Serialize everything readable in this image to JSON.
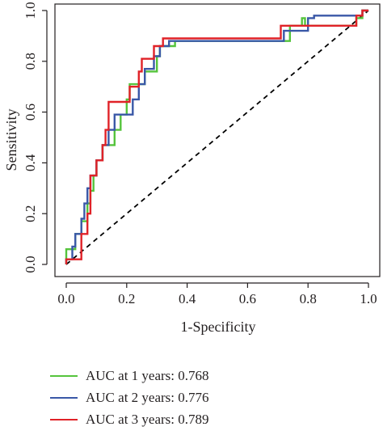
{
  "chart_data": {
    "type": "line",
    "title": "",
    "xlabel": "1-Specificity",
    "ylabel": "Sensitivity",
    "xlim": [
      0,
      1
    ],
    "ylim": [
      0,
      1
    ],
    "x_ticks": [
      "0.0",
      "0.2",
      "0.4",
      "0.6",
      "0.8",
      "1.0"
    ],
    "y_ticks": [
      "0.0",
      "0.2",
      "0.4",
      "0.6",
      "0.8",
      "1.0"
    ],
    "grid": false,
    "legend_position": "bottom",
    "reference_line": {
      "style": "dashed",
      "color": "#000000",
      "from": [
        0,
        0
      ],
      "to": [
        1,
        1
      ]
    },
    "series": [
      {
        "name": "AUC at 1 years: 0.768",
        "color": "#55c43c",
        "points": [
          [
            0,
            0
          ],
          [
            0,
            0.06
          ],
          [
            0.03,
            0.06
          ],
          [
            0.03,
            0.12
          ],
          [
            0.05,
            0.12
          ],
          [
            0.05,
            0.17
          ],
          [
            0.07,
            0.17
          ],
          [
            0.07,
            0.24
          ],
          [
            0.08,
            0.24
          ],
          [
            0.08,
            0.29
          ],
          [
            0.09,
            0.29
          ],
          [
            0.09,
            0.35
          ],
          [
            0.1,
            0.35
          ],
          [
            0.1,
            0.41
          ],
          [
            0.12,
            0.41
          ],
          [
            0.12,
            0.47
          ],
          [
            0.16,
            0.47
          ],
          [
            0.16,
            0.53
          ],
          [
            0.18,
            0.53
          ],
          [
            0.18,
            0.59
          ],
          [
            0.2,
            0.59
          ],
          [
            0.2,
            0.65
          ],
          [
            0.21,
            0.65
          ],
          [
            0.21,
            0.71
          ],
          [
            0.26,
            0.71
          ],
          [
            0.26,
            0.76
          ],
          [
            0.3,
            0.76
          ],
          [
            0.3,
            0.82
          ],
          [
            0.31,
            0.82
          ],
          [
            0.31,
            0.86
          ],
          [
            0.36,
            0.86
          ],
          [
            0.36,
            0.88
          ],
          [
            0.74,
            0.88
          ],
          [
            0.74,
            0.94
          ],
          [
            0.78,
            0.94
          ],
          [
            0.78,
            0.97
          ],
          [
            0.79,
            0.97
          ],
          [
            0.79,
            0.94
          ],
          [
            0.96,
            0.94
          ],
          [
            0.96,
            0.97
          ],
          [
            0.98,
            0.97
          ],
          [
            0.98,
            1
          ],
          [
            1,
            1
          ]
        ]
      },
      {
        "name": "AUC at 2 years: 0.776",
        "color": "#3a58a7",
        "points": [
          [
            0,
            0
          ],
          [
            0,
            0.02
          ],
          [
            0.02,
            0.02
          ],
          [
            0.02,
            0.07
          ],
          [
            0.03,
            0.07
          ],
          [
            0.03,
            0.12
          ],
          [
            0.05,
            0.12
          ],
          [
            0.05,
            0.18
          ],
          [
            0.06,
            0.18
          ],
          [
            0.06,
            0.24
          ],
          [
            0.07,
            0.24
          ],
          [
            0.07,
            0.3
          ],
          [
            0.08,
            0.3
          ],
          [
            0.08,
            0.35
          ],
          [
            0.1,
            0.35
          ],
          [
            0.1,
            0.41
          ],
          [
            0.12,
            0.41
          ],
          [
            0.12,
            0.47
          ],
          [
            0.14,
            0.47
          ],
          [
            0.14,
            0.53
          ],
          [
            0.16,
            0.53
          ],
          [
            0.16,
            0.59
          ],
          [
            0.22,
            0.59
          ],
          [
            0.22,
            0.65
          ],
          [
            0.24,
            0.65
          ],
          [
            0.24,
            0.71
          ],
          [
            0.26,
            0.71
          ],
          [
            0.26,
            0.77
          ],
          [
            0.29,
            0.77
          ],
          [
            0.29,
            0.82
          ],
          [
            0.31,
            0.82
          ],
          [
            0.31,
            0.86
          ],
          [
            0.34,
            0.86
          ],
          [
            0.34,
            0.88
          ],
          [
            0.72,
            0.88
          ],
          [
            0.72,
            0.92
          ],
          [
            0.8,
            0.92
          ],
          [
            0.8,
            0.97
          ],
          [
            0.82,
            0.97
          ],
          [
            0.82,
            0.98
          ],
          [
            0.98,
            0.98
          ],
          [
            0.98,
            1
          ],
          [
            1,
            1
          ]
        ]
      },
      {
        "name": "AUC at 3 years: 0.789",
        "color": "#e02228",
        "points": [
          [
            0,
            0
          ],
          [
            0,
            0.02
          ],
          [
            0.05,
            0.02
          ],
          [
            0.05,
            0.12
          ],
          [
            0.07,
            0.12
          ],
          [
            0.07,
            0.2
          ],
          [
            0.08,
            0.2
          ],
          [
            0.08,
            0.35
          ],
          [
            0.1,
            0.35
          ],
          [
            0.1,
            0.41
          ],
          [
            0.12,
            0.41
          ],
          [
            0.12,
            0.47
          ],
          [
            0.13,
            0.47
          ],
          [
            0.13,
            0.53
          ],
          [
            0.14,
            0.53
          ],
          [
            0.14,
            0.64
          ],
          [
            0.21,
            0.64
          ],
          [
            0.21,
            0.7
          ],
          [
            0.24,
            0.7
          ],
          [
            0.24,
            0.76
          ],
          [
            0.25,
            0.76
          ],
          [
            0.25,
            0.81
          ],
          [
            0.29,
            0.81
          ],
          [
            0.29,
            0.86
          ],
          [
            0.32,
            0.86
          ],
          [
            0.32,
            0.89
          ],
          [
            0.71,
            0.89
          ],
          [
            0.71,
            0.94
          ],
          [
            0.96,
            0.94
          ],
          [
            0.96,
            0.98
          ],
          [
            0.98,
            0.98
          ],
          [
            0.98,
            1
          ],
          [
            1,
            1
          ]
        ]
      }
    ]
  }
}
